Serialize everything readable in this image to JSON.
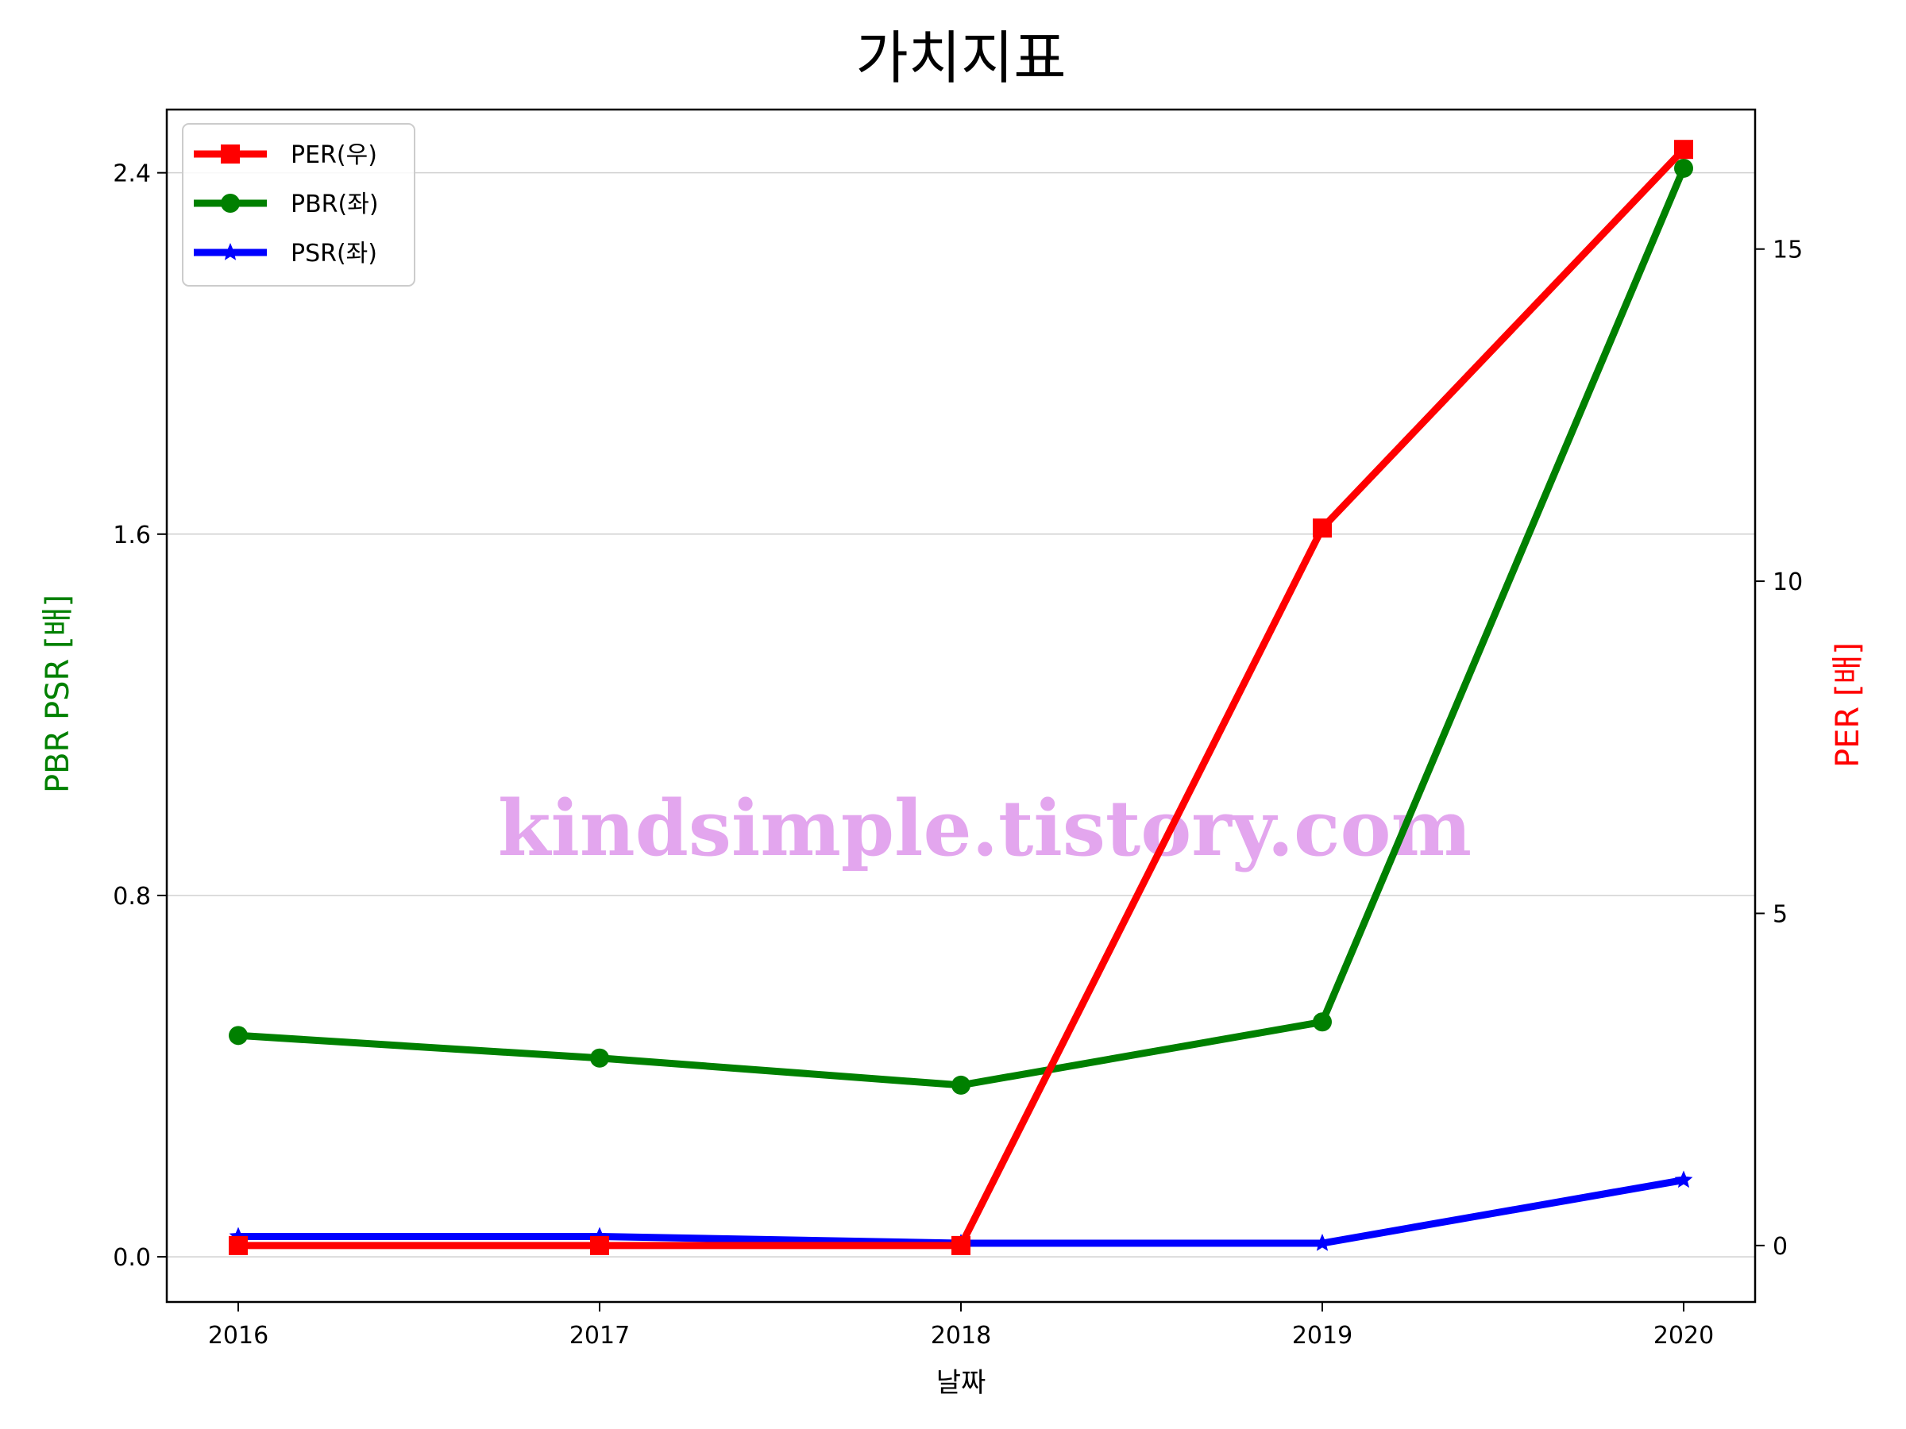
{
  "chart_data": {
    "type": "line",
    "title": "가치지표",
    "xlabel": "날짜",
    "ylabel_left": "PBR PSR [배]",
    "ylabel_right": "PER [배]",
    "categories": [
      "2016",
      "2017",
      "2018",
      "2019",
      "2020"
    ],
    "yticks_left": [
      "0.0",
      "0.8",
      "1.6",
      "2.4"
    ],
    "ylim_left": [
      -0.1,
      2.54
    ],
    "yticks_right": [
      "0",
      "5",
      "10",
      "15"
    ],
    "ylim_right": [
      -0.85,
      17.1
    ],
    "grid": "horizontal",
    "legend_position": "top-left",
    "series": [
      {
        "name": "PER(우)",
        "axis": "right",
        "color": "#ff0000",
        "marker": "square",
        "values": [
          0.0,
          0.0,
          0.0,
          10.8,
          16.5
        ]
      },
      {
        "name": "PBR(좌)",
        "axis": "left",
        "color": "#008000",
        "marker": "circle",
        "values": [
          0.49,
          0.44,
          0.38,
          0.52,
          2.41
        ]
      },
      {
        "name": "PSR(좌)",
        "axis": "left",
        "color": "#0000ff",
        "marker": "star",
        "values": [
          0.045,
          0.045,
          0.03,
          0.03,
          0.17
        ]
      }
    ],
    "watermark": "kindsimple.tistory.com"
  }
}
